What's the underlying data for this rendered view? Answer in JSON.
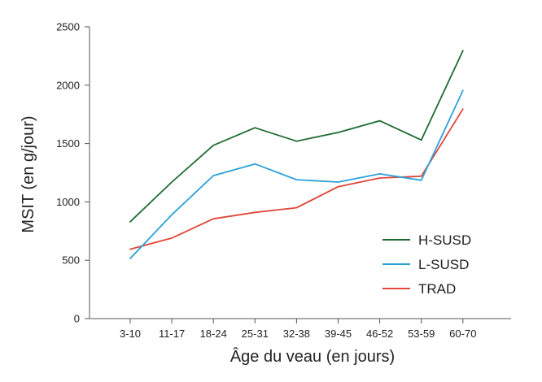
{
  "chart_data": {
    "type": "line",
    "xlabel": "Âge du veau (en jours)",
    "ylabel": "MSIT (en g/jour)",
    "categories": [
      "3-10",
      "11-17",
      "18-24",
      "25-31",
      "32-38",
      "39-45",
      "46-52",
      "53-59",
      "60-70"
    ],
    "ylim": [
      0,
      2500
    ],
    "yticks": [
      0,
      500,
      1000,
      1500,
      2000,
      2500
    ],
    "grid": false,
    "legend_position": "bottom-right",
    "series": [
      {
        "name": "H-SUSD",
        "color": "#1e6b32",
        "values": [
          830,
          1170,
          1485,
          1635,
          1520,
          1595,
          1695,
          1530,
          2295
        ]
      },
      {
        "name": "L-SUSD",
        "color": "#2aa2d8",
        "values": [
          515,
          890,
          1225,
          1325,
          1190,
          1170,
          1240,
          1185,
          1955
        ]
      },
      {
        "name": "TRAD",
        "color": "#e0463a",
        "values": [
          595,
          690,
          855,
          910,
          950,
          1130,
          1205,
          1220,
          1795
        ]
      }
    ]
  }
}
